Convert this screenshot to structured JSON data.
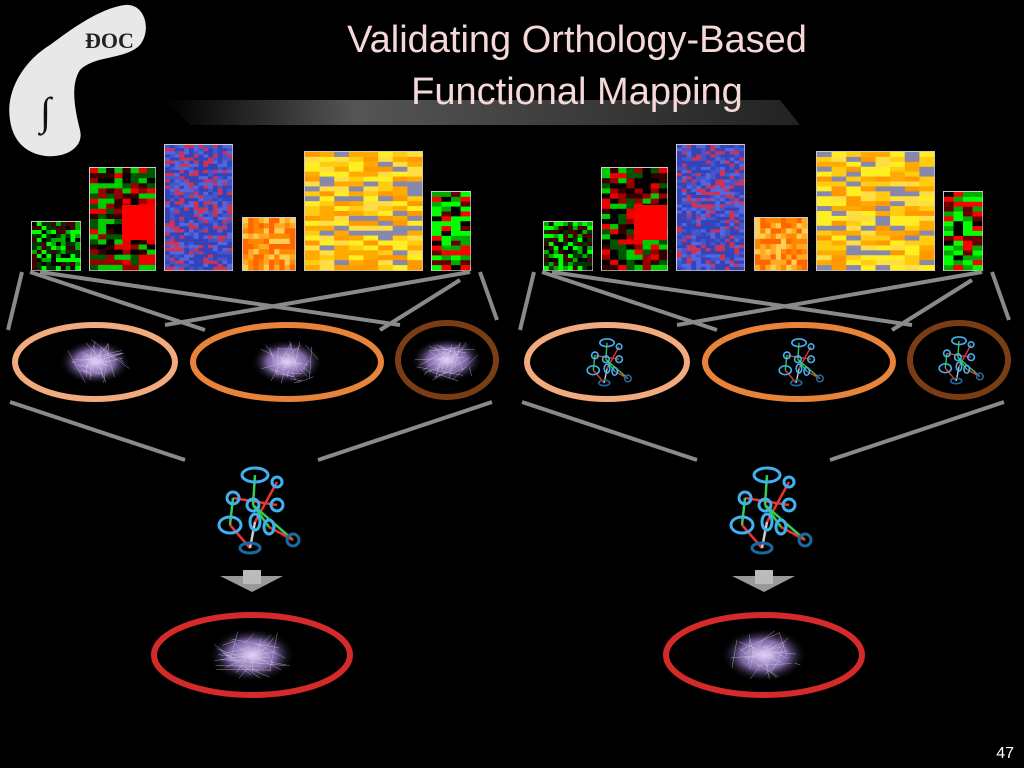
{
  "header": {
    "title_lines": [
      "Validating Orthology-Based",
      "Functional Mapping"
    ]
  },
  "footer": {
    "slide_number": "47"
  }
}
